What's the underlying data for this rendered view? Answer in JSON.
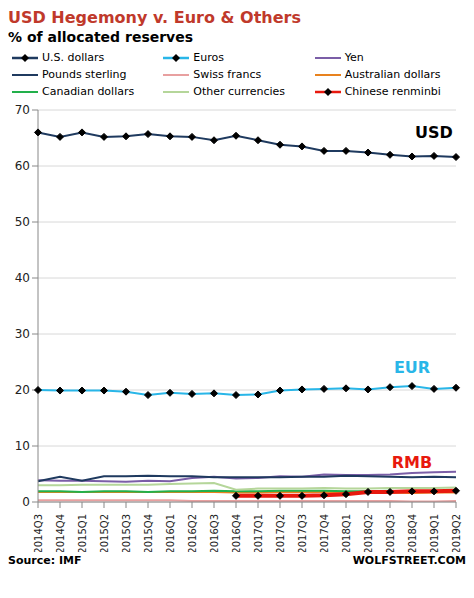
{
  "chart_data": {
    "type": "line",
    "title": "USD Hegemony v. Euro & Others",
    "subtitle": "% of allocated reserves",
    "source": "Source: IMF",
    "credit": "WOLFSTREET.COM",
    "categories": [
      "2014Q3",
      "2014Q4",
      "2015Q1",
      "2015Q2",
      "2015Q3",
      "2015Q4",
      "2016Q1",
      "2016Q2",
      "2016Q3",
      "2016Q4",
      "2017Q1",
      "2017Q2",
      "2017Q3",
      "2017Q4",
      "2018Q1",
      "2018Q2",
      "2018Q3",
      "2018Q4",
      "2019Q1",
      "2019Q2"
    ],
    "ylim": [
      0,
      70
    ],
    "yticks": [
      0,
      10,
      20,
      30,
      40,
      50,
      60,
      70
    ],
    "grid": true,
    "legend": "top",
    "series": [
      {
        "name": "U.S. dollars",
        "color": "#1f3a5f",
        "marker": "diamond",
        "values": [
          66.0,
          65.2,
          66.0,
          65.2,
          65.3,
          65.7,
          65.3,
          65.2,
          64.6,
          65.4,
          64.6,
          63.8,
          63.5,
          62.7,
          62.7,
          62.4,
          62.0,
          61.7,
          61.8,
          61.6
        ]
      },
      {
        "name": "Euros",
        "color": "#29b6e8",
        "marker": "diamond",
        "values": [
          20.0,
          19.9,
          19.9,
          19.9,
          19.7,
          19.1,
          19.5,
          19.3,
          19.4,
          19.1,
          19.2,
          19.9,
          20.1,
          20.2,
          20.3,
          20.1,
          20.5,
          20.7,
          20.2,
          20.4
        ]
      },
      {
        "name": "Yen",
        "color": "#7b5ea7",
        "marker": "none",
        "values": [
          3.9,
          3.8,
          3.8,
          3.7,
          3.6,
          3.8,
          3.7,
          4.3,
          4.5,
          4.2,
          4.3,
          4.6,
          4.5,
          4.9,
          4.8,
          4.8,
          4.9,
          5.2,
          5.3,
          5.4
        ]
      },
      {
        "name": "Pounds sterling",
        "color": "#1f3a5f",
        "marker": "none",
        "values": [
          3.7,
          4.5,
          3.8,
          4.6,
          4.6,
          4.7,
          4.6,
          4.6,
          4.4,
          4.4,
          4.4,
          4.4,
          4.5,
          4.5,
          4.7,
          4.6,
          4.5,
          4.4,
          4.5,
          4.4
        ]
      },
      {
        "name": "Swiss francs",
        "color": "#e8a0a0",
        "marker": "none",
        "values": [
          0.3,
          0.3,
          0.3,
          0.3,
          0.3,
          0.3,
          0.3,
          0.2,
          0.2,
          0.2,
          0.2,
          0.2,
          0.2,
          0.2,
          0.2,
          0.2,
          0.2,
          0.1,
          0.1,
          0.2
        ]
      },
      {
        "name": "Australian dollars",
        "color": "#e8821e",
        "marker": "none",
        "values": [
          1.8,
          1.8,
          1.8,
          1.8,
          1.8,
          1.8,
          1.8,
          1.8,
          1.8,
          1.7,
          1.7,
          1.8,
          1.8,
          1.8,
          1.7,
          1.7,
          1.7,
          1.6,
          1.7,
          1.7
        ]
      },
      {
        "name": "Canadian dollars",
        "color": "#22b04b",
        "marker": "none",
        "values": [
          1.9,
          1.9,
          1.8,
          1.9,
          1.9,
          1.8,
          1.9,
          1.9,
          2.0,
          1.9,
          1.9,
          2.0,
          2.0,
          2.0,
          1.9,
          1.9,
          2.0,
          1.8,
          1.9,
          1.9
        ]
      },
      {
        "name": "Other currencies",
        "color": "#b5d69a",
        "marker": "none",
        "values": [
          3.0,
          3.0,
          3.1,
          3.1,
          3.1,
          3.1,
          3.2,
          3.3,
          3.4,
          2.2,
          2.4,
          2.4,
          2.4,
          2.5,
          2.4,
          2.4,
          2.5,
          2.5,
          2.5,
          2.6
        ]
      },
      {
        "name": "Chinese renminbi",
        "color": "#e8190e",
        "marker": "diamond",
        "values": [
          null,
          null,
          null,
          null,
          null,
          null,
          null,
          null,
          null,
          1.1,
          1.1,
          1.1,
          1.1,
          1.2,
          1.4,
          1.8,
          1.8,
          1.9,
          1.9,
          2.0
        ]
      }
    ],
    "annotations": [
      {
        "text": "USD",
        "x": "2019Q1",
        "y": 66,
        "color": "#000000"
      },
      {
        "text": "EUR",
        "x": "2018Q4",
        "y": 24,
        "color": "#29b6e8"
      },
      {
        "text": "RMB",
        "x": "2018Q4",
        "y": 7,
        "color": "#e8190e"
      }
    ]
  }
}
